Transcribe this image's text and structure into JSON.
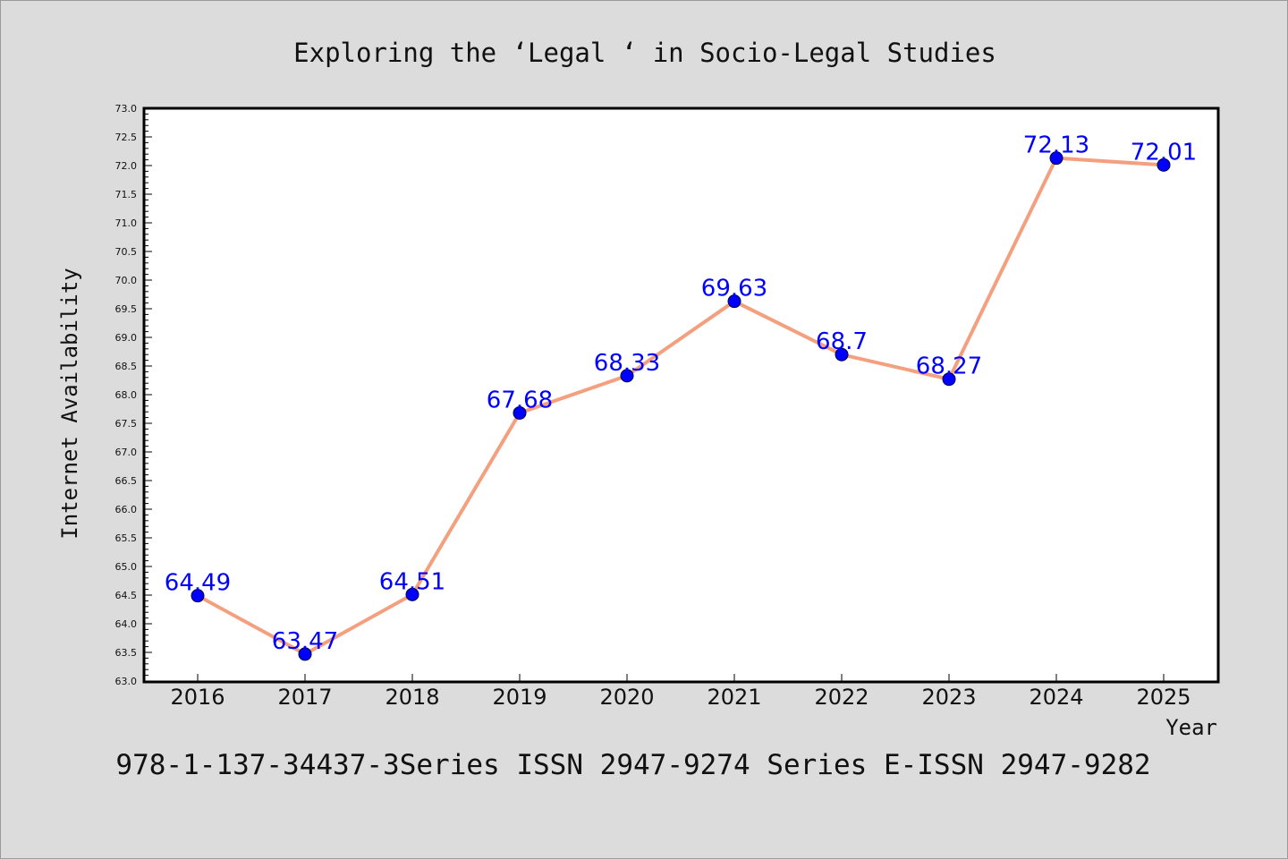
{
  "chart_data": {
    "type": "line",
    "title": "Exploring the  ‘Legal ‘ in Socio-Legal Studies",
    "xlabel": "Year",
    "ylabel": "Internet Availability",
    "footer": "978-1-137-34437-3Series ISSN 2947-9274 Series E-ISSN 2947-9282",
    "x": [
      "2016",
      "2017",
      "2018",
      "2019",
      "2020",
      "2021",
      "2022",
      "2023",
      "2024",
      "2025"
    ],
    "series": [
      {
        "values": [
          64.49,
          63.47,
          64.51,
          67.68,
          68.33,
          69.63,
          68.7,
          68.27,
          72.13,
          72.01
        ],
        "labels": [
          "64.49",
          "63.47",
          "64.51",
          "67.68",
          "68.33",
          "69.63",
          "68.7",
          "68.27",
          "72.13",
          "72.01"
        ]
      }
    ],
    "ylim": [
      63.0,
      73.0
    ],
    "yticks": [
      "63.0",
      "63.5",
      "64.0",
      "64.5",
      "65.0",
      "65.5",
      "66.0",
      "66.5",
      "67.0",
      "67.5",
      "68.0",
      "68.5",
      "69.0",
      "69.5",
      "70.0",
      "70.5",
      "71.0",
      "71.5",
      "72.0",
      "72.5",
      "73.0"
    ],
    "grid": false,
    "legend": "none",
    "colors": {
      "line": "#f4a07f",
      "marker": "#0000ff",
      "labels": "#0000ff",
      "background": "#dcdcdc",
      "plot_background": "#ffffff"
    }
  }
}
